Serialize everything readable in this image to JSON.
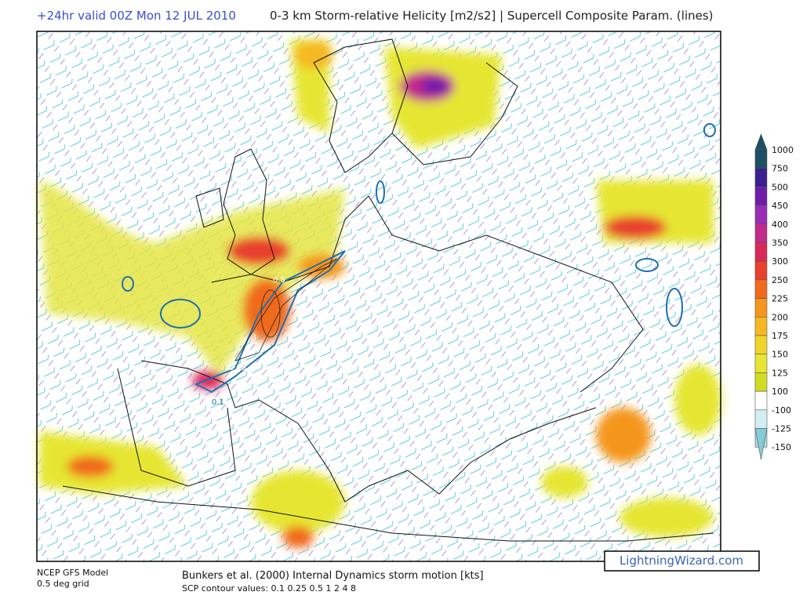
{
  "header": {
    "valid_time": "+24hr valid 00Z Mon 12 JUL 2010",
    "title": "0-3 km Storm-relative Helicity [m2/s2] | Supercell Composite Param. (lines)"
  },
  "colorbar": {
    "levels": [
      {
        "value": 1000,
        "color": "#1d4f64"
      },
      {
        "value": 750,
        "color": "#3b1f8c"
      },
      {
        "value": 500,
        "color": "#6c1eaa"
      },
      {
        "value": 450,
        "color": "#9a2cb6"
      },
      {
        "value": 400,
        "color": "#c22a8c"
      },
      {
        "value": 350,
        "color": "#d9285a"
      },
      {
        "value": 300,
        "color": "#e8412e"
      },
      {
        "value": 250,
        "color": "#f06b1e"
      },
      {
        "value": 225,
        "color": "#f5961f"
      },
      {
        "value": 200,
        "color": "#f6b822"
      },
      {
        "value": 175,
        "color": "#f0d42a"
      },
      {
        "value": 150,
        "color": "#e6e632"
      },
      {
        "value": 125,
        "color": "#d0de22"
      },
      {
        "value": 100,
        "color": "#ffffff"
      },
      {
        "value": -100,
        "color": "#d2eef1"
      },
      {
        "value": -125,
        "color": "#aadde5"
      },
      {
        "value": -150,
        "color": "#86cbd8"
      }
    ]
  },
  "map": {
    "contour_labels": [
      "0.5",
      "1",
      "0.25",
      "0.1"
    ]
  },
  "footer": {
    "model": "NCEP GFS Model",
    "grid": "0.5 deg grid",
    "motion": "Bunkers et al. (2000) Internal Dynamics storm motion [kts]",
    "scp": "SCP contour values: 0.1 0.25 0.5 1 2 4 8"
  },
  "watermark": "LightningWizard.com"
}
